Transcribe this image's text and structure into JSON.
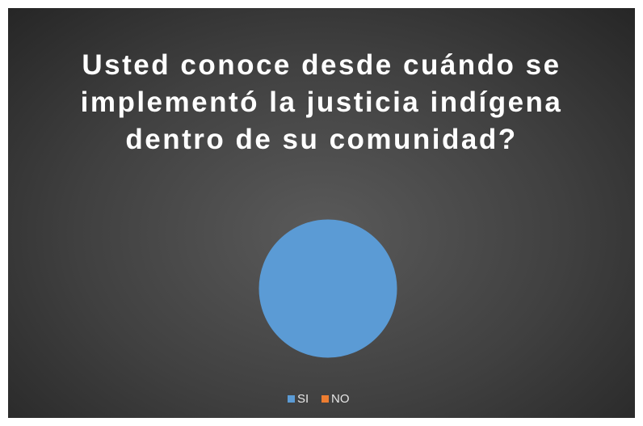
{
  "chart_data": {
    "type": "pie",
    "title": "Usted conoce desde cuándo se implementó la justicia indígena dentro de su comunidad?",
    "categories": [
      "SI",
      "NO"
    ],
    "values": [
      100,
      0
    ],
    "colors": [
      "#5b9bd5",
      "#ed7d31"
    ],
    "legend": "bottom"
  }
}
